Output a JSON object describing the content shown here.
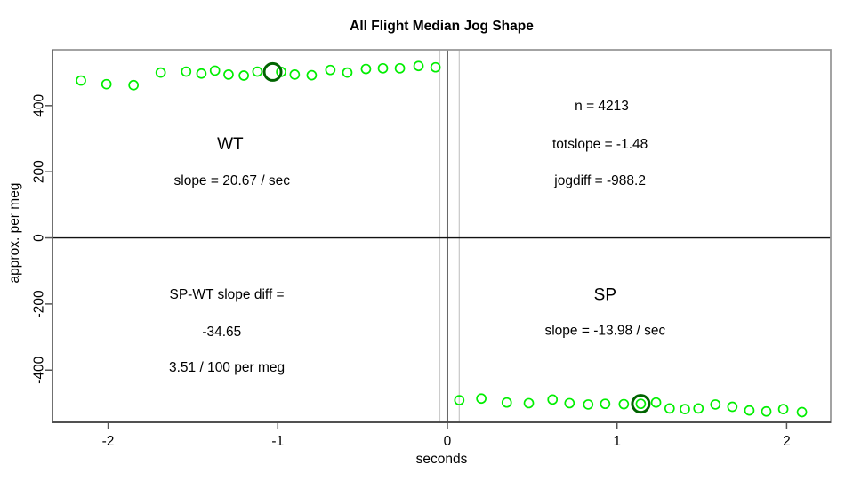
{
  "figure": {
    "title": "All Flight Median Jog Shape",
    "x_axis_label": "seconds",
    "y_axis_label": "approx. per meg"
  },
  "chart_data": {
    "type": "scatter",
    "title": "All Flight Median Jog Shape",
    "xlabel": "seconds",
    "ylabel": "approx. per meg",
    "xlim": [
      -2.328,
      2.26
    ],
    "ylim": [
      -558,
      569
    ],
    "grid": false,
    "legend": false,
    "point_color": "#00EE00",
    "highlight_color": "#006400",
    "x_ticks": [
      {
        "value": -2,
        "label": "-2"
      },
      {
        "value": -1,
        "label": "-1"
      },
      {
        "value": 0,
        "label": "0"
      },
      {
        "value": 1,
        "label": "1"
      },
      {
        "value": 2,
        "label": "2"
      }
    ],
    "y_ticks": [
      {
        "value": -400,
        "label": "-400"
      },
      {
        "value": -200,
        "label": "-200"
      },
      {
        "value": 0,
        "label": "0"
      },
      {
        "value": 200,
        "label": "200"
      },
      {
        "value": 400,
        "label": "400"
      }
    ],
    "series": [
      {
        "name": "WT",
        "marker": "open-circle",
        "points": [
          [
            -2.16,
            476
          ],
          [
            -2.01,
            465
          ],
          [
            -1.85,
            462
          ],
          [
            -1.69,
            500
          ],
          [
            -1.54,
            503
          ],
          [
            -1.45,
            497
          ],
          [
            -1.37,
            506
          ],
          [
            -1.29,
            494
          ],
          [
            -1.2,
            491
          ],
          [
            -1.12,
            503
          ],
          [
            -0.98,
            502
          ],
          [
            -0.9,
            494
          ],
          [
            -0.8,
            492
          ],
          [
            -0.69,
            508
          ],
          [
            -0.59,
            500
          ],
          [
            -0.48,
            511
          ],
          [
            -0.38,
            513
          ],
          [
            -0.28,
            513
          ],
          [
            -0.17,
            520
          ],
          [
            -0.07,
            516
          ]
        ]
      },
      {
        "name": "SP",
        "marker": "open-circle",
        "points": [
          [
            0.07,
            -491
          ],
          [
            0.2,
            -486
          ],
          [
            0.35,
            -498
          ],
          [
            0.48,
            -500
          ],
          [
            0.62,
            -489
          ],
          [
            0.72,
            -500
          ],
          [
            0.83,
            -504
          ],
          [
            0.93,
            -502
          ],
          [
            1.04,
            -503
          ],
          [
            1.14,
            -502
          ],
          [
            1.23,
            -498
          ],
          [
            1.31,
            -516
          ],
          [
            1.4,
            -518
          ],
          [
            1.48,
            -516
          ],
          [
            1.58,
            -504
          ],
          [
            1.68,
            -511
          ],
          [
            1.78,
            -522
          ],
          [
            1.88,
            -525
          ],
          [
            1.98,
            -518
          ],
          [
            2.09,
            -527
          ]
        ]
      }
    ],
    "highlight_rings": [
      {
        "series": "WT",
        "x": -1.03,
        "y": 502
      },
      {
        "series": "SP",
        "x": 1.14,
        "y": -502
      }
    ],
    "reference_lines": {
      "horizontal_dark": [
        0
      ],
      "vertical_dark": [
        0
      ],
      "vertical_light": [
        -0.045,
        0.07
      ]
    },
    "annotations": [
      {
        "id": "wt-label",
        "text": "WT",
        "x": -1.28,
        "y": 283,
        "size": 19
      },
      {
        "id": "wt-slope",
        "text": "slope = 20.67 / sec",
        "x": -1.27,
        "y": 172,
        "size": 15.5
      },
      {
        "id": "n-count",
        "text": "n = 4213",
        "x": 0.91,
        "y": 398,
        "size": 15.5
      },
      {
        "id": "totslope",
        "text": "totslope = -1.48",
        "x": 0.9,
        "y": 282,
        "size": 15.5
      },
      {
        "id": "jogdiff",
        "text": "jogdiff = -988.2",
        "x": 0.9,
        "y": 172,
        "size": 15.5
      },
      {
        "id": "spwt-diff-line1",
        "text": "SP-WT slope diff =",
        "x": -1.3,
        "y": -172,
        "size": 15.5
      },
      {
        "id": "spwt-diff-line2",
        "text": "-34.65",
        "x": -1.33,
        "y": -285,
        "size": 15.5
      },
      {
        "id": "spwt-diff-line3",
        "text": "3.51 / 100 per meg",
        "x": -1.3,
        "y": -392,
        "size": 15.5
      },
      {
        "id": "sp-label",
        "text": "SP",
        "x": 0.93,
        "y": -174,
        "size": 19
      },
      {
        "id": "sp-slope",
        "text": "slope = -13.98 / sec",
        "x": 0.93,
        "y": -281,
        "size": 15.5
      }
    ]
  }
}
